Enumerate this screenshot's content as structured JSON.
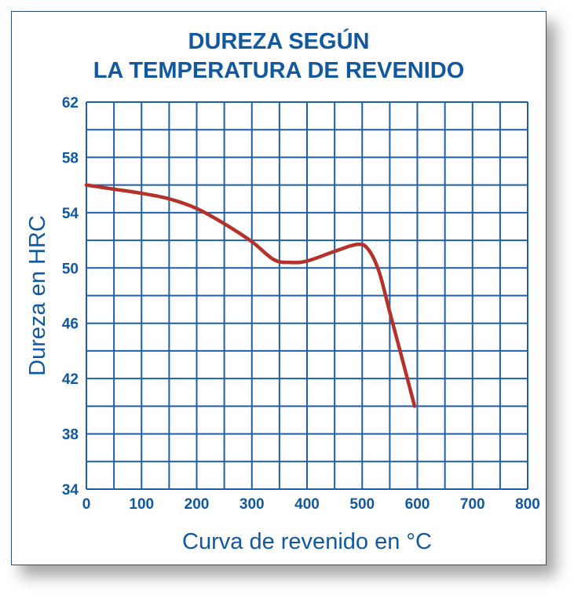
{
  "colors": {
    "accent": "#12589e",
    "grid": "#1f5fa8",
    "curve": "#b5312a"
  },
  "chart_data": {
    "type": "line",
    "title": [
      "DUREZA SEGÚN",
      "LA TEMPERATURA DE REVENIDO"
    ],
    "xlabel": "Curva de revenido en °C",
    "ylabel": "Dureza en HRC",
    "xlim": [
      0,
      800
    ],
    "ylim": [
      34,
      62
    ],
    "x_ticks": [
      0,
      100,
      200,
      300,
      400,
      500,
      600,
      700,
      800
    ],
    "y_ticks": [
      34,
      38,
      42,
      46,
      50,
      54,
      58,
      62
    ],
    "x_grid_step": 50,
    "y_grid_step": 2,
    "grid": true,
    "series": [
      {
        "x": [
          0,
          50,
          100,
          150,
          200,
          250,
          300,
          340,
          370,
          400,
          450,
          490,
          510,
          530,
          550,
          570,
          595
        ],
        "values": [
          56.0,
          55.7,
          55.4,
          55.0,
          54.3,
          53.2,
          51.9,
          50.6,
          50.4,
          50.5,
          51.2,
          51.7,
          51.4,
          49.8,
          46.8,
          43.8,
          40.0
        ]
      }
    ]
  }
}
